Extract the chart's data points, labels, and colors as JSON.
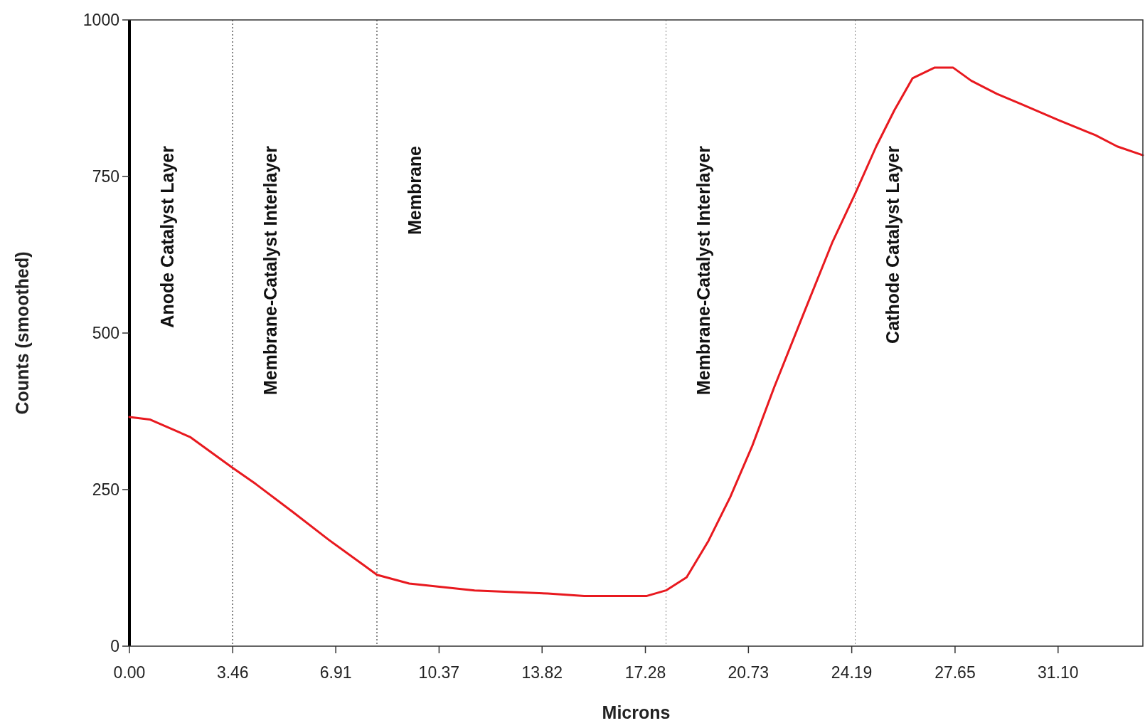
{
  "chart_data": {
    "type": "line",
    "xlabel": "Microns",
    "ylabel": "Counts (smoothed)",
    "x": [
      0,
      0.68,
      2.03,
      3.45,
      4.23,
      5.45,
      6.67,
      8.29,
      9.37,
      11.56,
      14.01,
      15.23,
      17.31,
      17.97,
      18.66,
      19.39,
      20.12,
      20.86,
      21.59,
      22.57,
      23.55,
      24.3,
      25.01,
      25.62,
      26.23,
      26.97,
      27.58,
      28.19,
      29.05,
      29.9,
      31.12,
      32.35,
      33.08,
      33.94
    ],
    "series": [
      {
        "color": "#e8191f",
        "values": [
          366,
          362,
          334,
          285,
          259,
          215,
          170,
          114,
          100,
          89,
          84,
          80,
          80,
          89,
          110,
          168,
          238,
          320,
          413,
          530,
          646,
          722,
          798,
          856,
          907,
          924,
          924,
          903,
          882,
          865,
          840,
          816,
          798,
          784
        ]
      }
    ],
    "xlim": [
      0,
      33.94
    ],
    "xticks": [
      {
        "value": 0,
        "label": "0.00"
      },
      3.46,
      6.91,
      10.37,
      13.82,
      17.28,
      20.73,
      24.19,
      27.65,
      {
        "value": 31.1,
        "label": "31.10"
      }
    ],
    "ylim": [
      0,
      1000
    ],
    "yticks": [
      0,
      250,
      500,
      750,
      1000
    ],
    "annotations": [
      "Anode Catalyst Layer"
    ],
    "grid": false,
    "marker": "none",
    "line_style": "solid",
    "ref_lines": [
      {
        "axis": "x",
        "value": 3.45,
        "label": "Membrane-Catalyst Interlayer",
        "color": "#888888",
        "line_style": "dotted"
      },
      {
        "axis": "x",
        "value": 8.29,
        "label": "Membrane",
        "color": "#888888",
        "line_style": "dotted"
      },
      {
        "axis": "x",
        "value": 17.97,
        "label": "Membrane-Catalyst Interlayer",
        "color": "#888888",
        "line_style": "dotted"
      },
      {
        "axis": "x",
        "value": 24.3,
        "label": "Cathode Catalyst Layer",
        "color": "#888888",
        "line_style": "dotted"
      }
    ]
  }
}
